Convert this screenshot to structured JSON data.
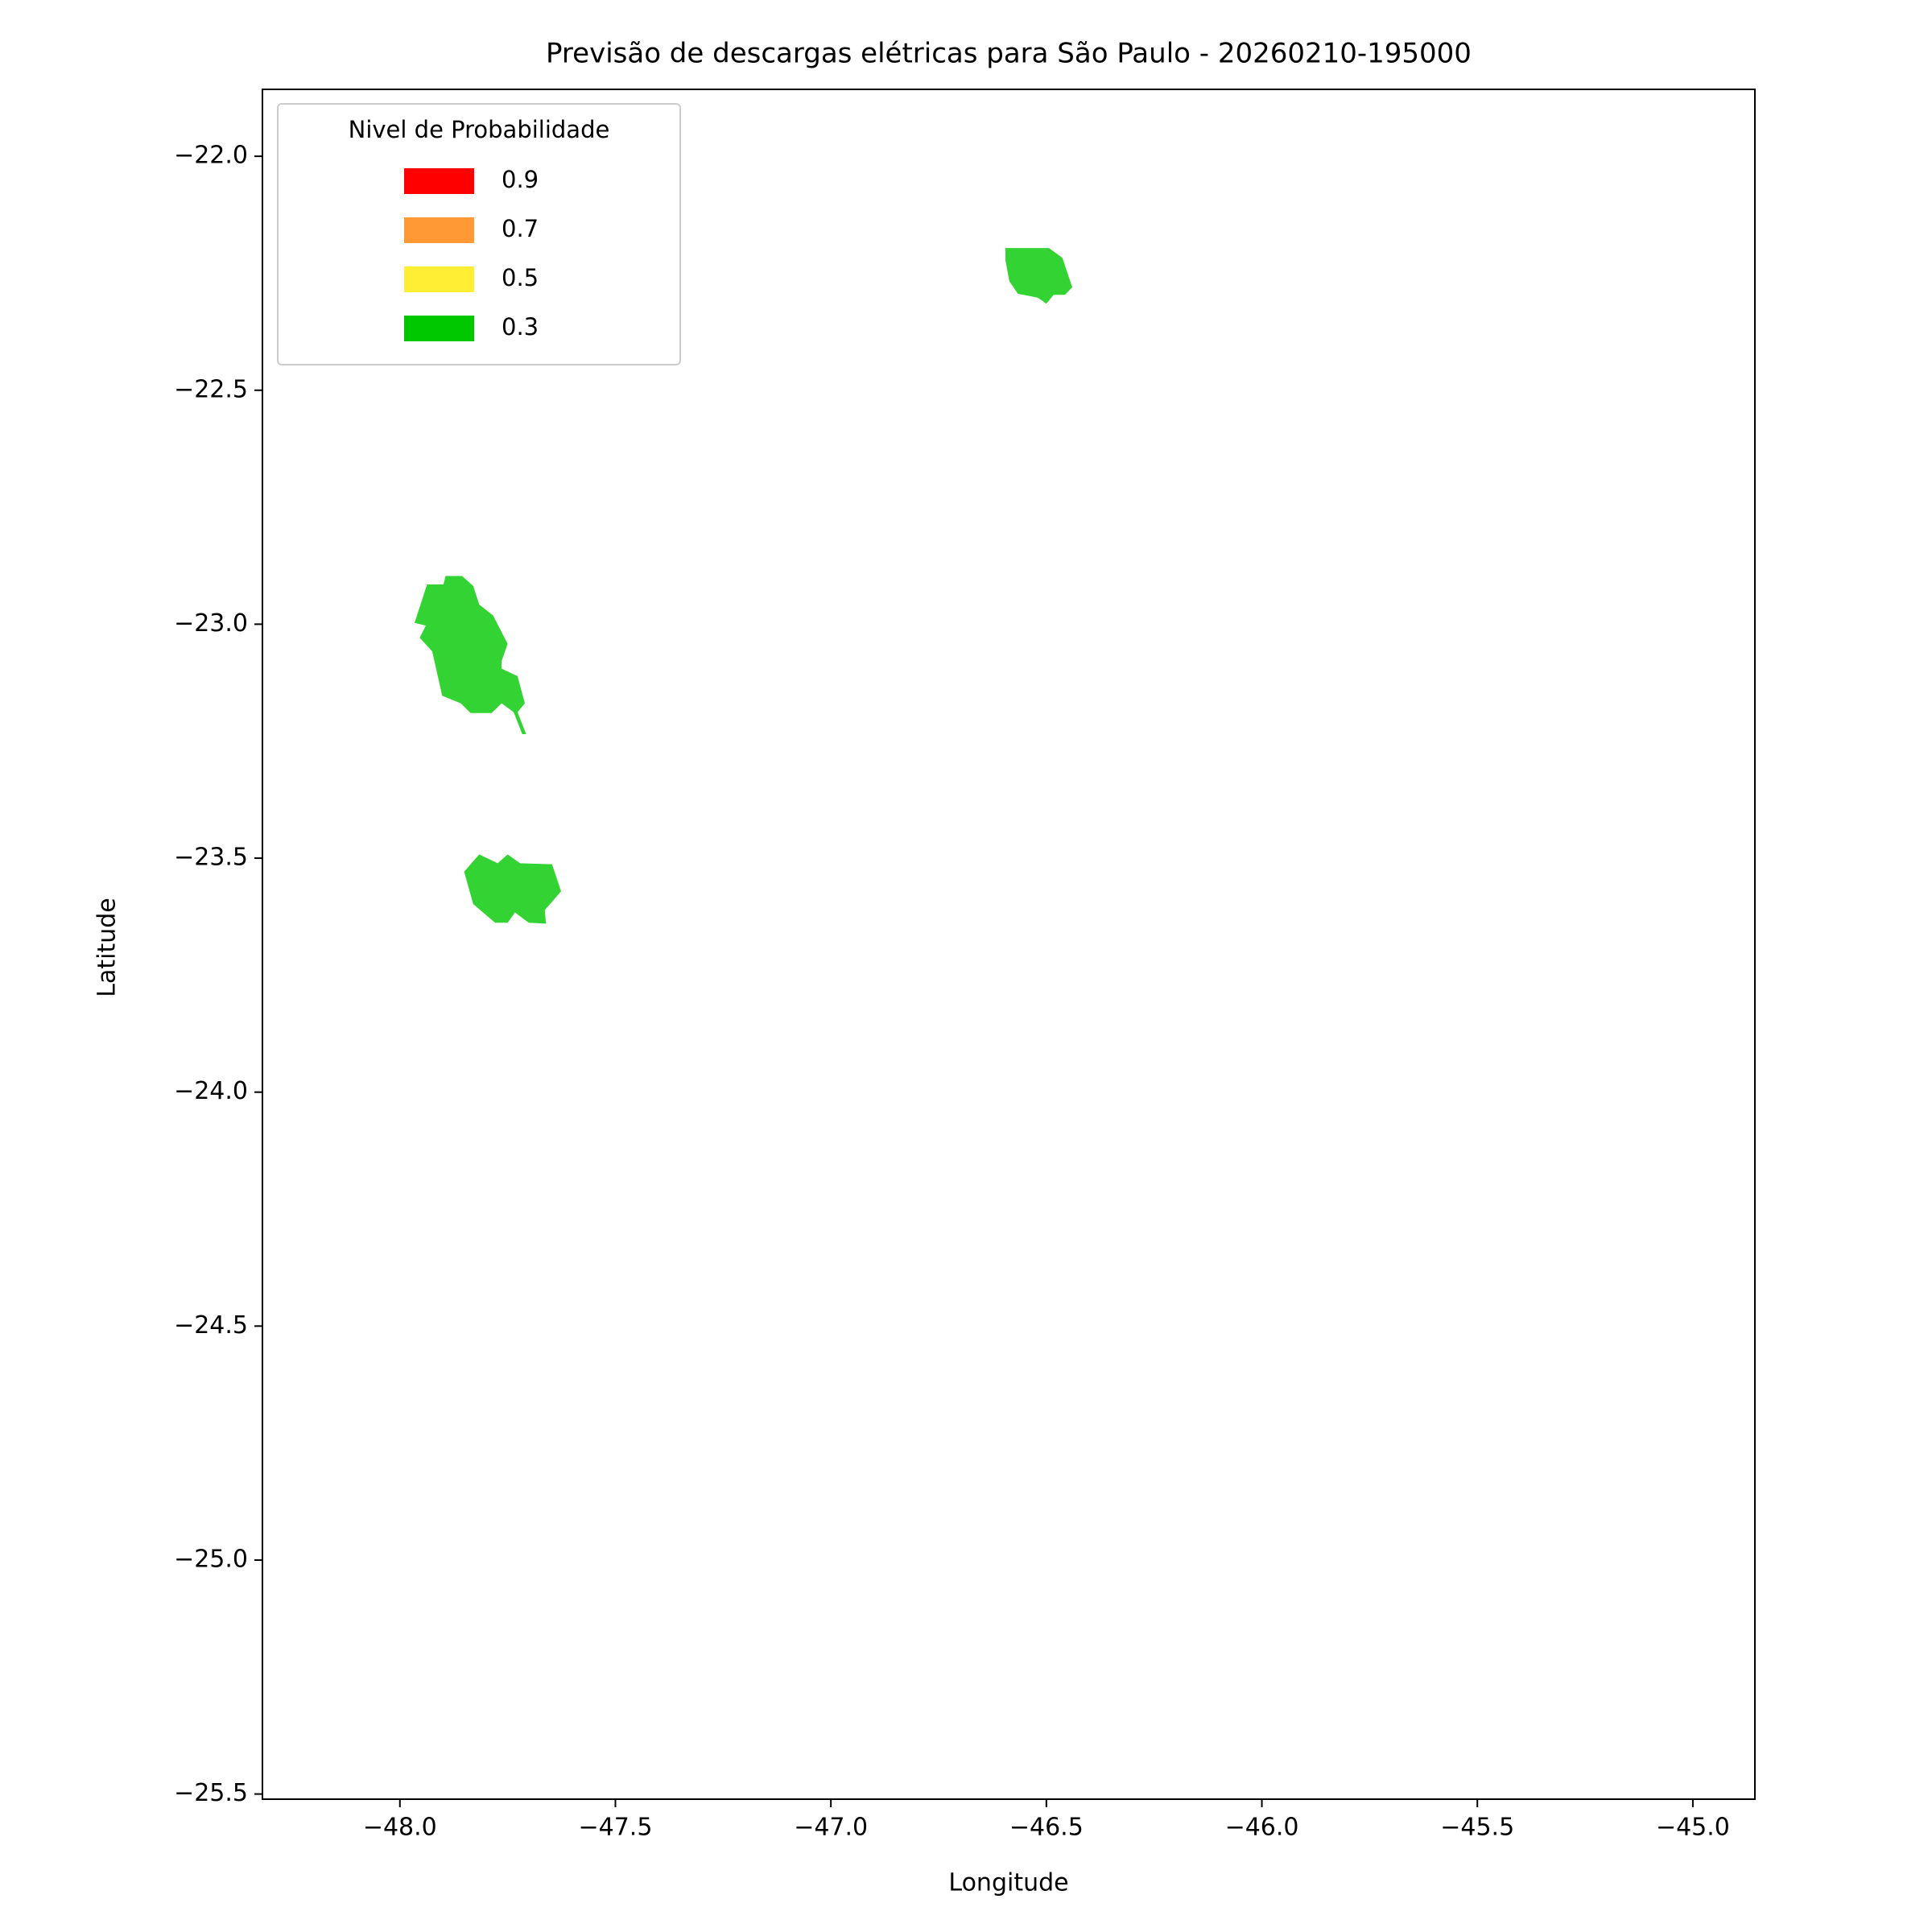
{
  "chart_data": {
    "type": "map",
    "title": "Previsão de descargas elétricas para São Paulo - 20260210-195000",
    "x_label": "Longitude",
    "y_label": "Latitude",
    "legend_title": "Nivel de Probabilidade",
    "legend_position": "upper left",
    "xlim": [
      -48.319,
      -44.856
    ],
    "ylim": [
      -25.511,
      -21.857
    ],
    "xticks": [
      {
        "value": -48.0,
        "label": "−48.0"
      },
      {
        "value": -47.5,
        "label": "−47.5"
      },
      {
        "value": -47.0,
        "label": "−47.0"
      },
      {
        "value": -46.5,
        "label": "−46.5"
      },
      {
        "value": -46.0,
        "label": "−46.0"
      },
      {
        "value": -45.5,
        "label": "−45.5"
      },
      {
        "value": -45.0,
        "label": "−45.0"
      }
    ],
    "yticks": [
      {
        "value": -22.0,
        "label": "−22.0"
      },
      {
        "value": -22.5,
        "label": "−22.5"
      },
      {
        "value": -23.0,
        "label": "−23.0"
      },
      {
        "value": -23.5,
        "label": "−23.5"
      },
      {
        "value": -24.0,
        "label": "−24.0"
      },
      {
        "value": -24.5,
        "label": "−24.5"
      },
      {
        "value": -25.0,
        "label": "−25.0"
      },
      {
        "value": -25.5,
        "label": "−25.5"
      }
    ],
    "series": [
      {
        "name": "0.9",
        "color": "#ff0000",
        "polygons": []
      },
      {
        "name": "0.7",
        "color": "#ff9933",
        "polygons": []
      },
      {
        "name": "0.5",
        "color": "#ffee33",
        "polygons": []
      },
      {
        "name": "0.3",
        "color": "#00c800",
        "polygons": [
          {
            "x": [
              -46.595,
              -46.494,
              -46.463,
              -46.44,
              -46.457,
              -46.483,
              -46.5,
              -46.52,
              -46.566,
              -46.586,
              -46.595
            ],
            "y": [
              -22.196,
              -22.196,
              -22.217,
              -22.28,
              -22.296,
              -22.296,
              -22.315,
              -22.302,
              -22.294,
              -22.267,
              -22.222
            ]
          },
          {
            "x": [
              -47.937,
              -47.899,
              -47.894,
              -47.856,
              -47.83,
              -47.816,
              -47.784,
              -47.75,
              -47.764,
              -47.764,
              -47.727,
              -47.71,
              -47.727,
              -47.707,
              -47.716,
              -47.736,
              -47.764,
              -47.787,
              -47.836,
              -47.859,
              -47.902,
              -47.925,
              -47.954,
              -47.94,
              -47.966
            ],
            "y": [
              -22.915,
              -22.915,
              -22.897,
              -22.897,
              -22.918,
              -22.958,
              -22.981,
              -23.042,
              -23.079,
              -23.095,
              -23.111,
              -23.169,
              -23.188,
              -23.235,
              -23.235,
              -23.188,
              -23.169,
              -23.19,
              -23.19,
              -23.169,
              -23.153,
              -23.058,
              -23.029,
              -23.003,
              -22.997
            ]
          },
          {
            "x": [
              -47.816,
              -47.773,
              -47.75,
              -47.721,
              -47.647,
              -47.626,
              -47.664,
              -47.661,
              -47.701,
              -47.733,
              -47.75,
              -47.779,
              -47.83,
              -47.851
            ],
            "y": [
              -23.492,
              -23.511,
              -23.492,
              -23.511,
              -23.513,
              -23.571,
              -23.611,
              -23.64,
              -23.638,
              -23.616,
              -23.638,
              -23.638,
              -23.598,
              -23.529
            ]
          }
        ]
      }
    ]
  }
}
